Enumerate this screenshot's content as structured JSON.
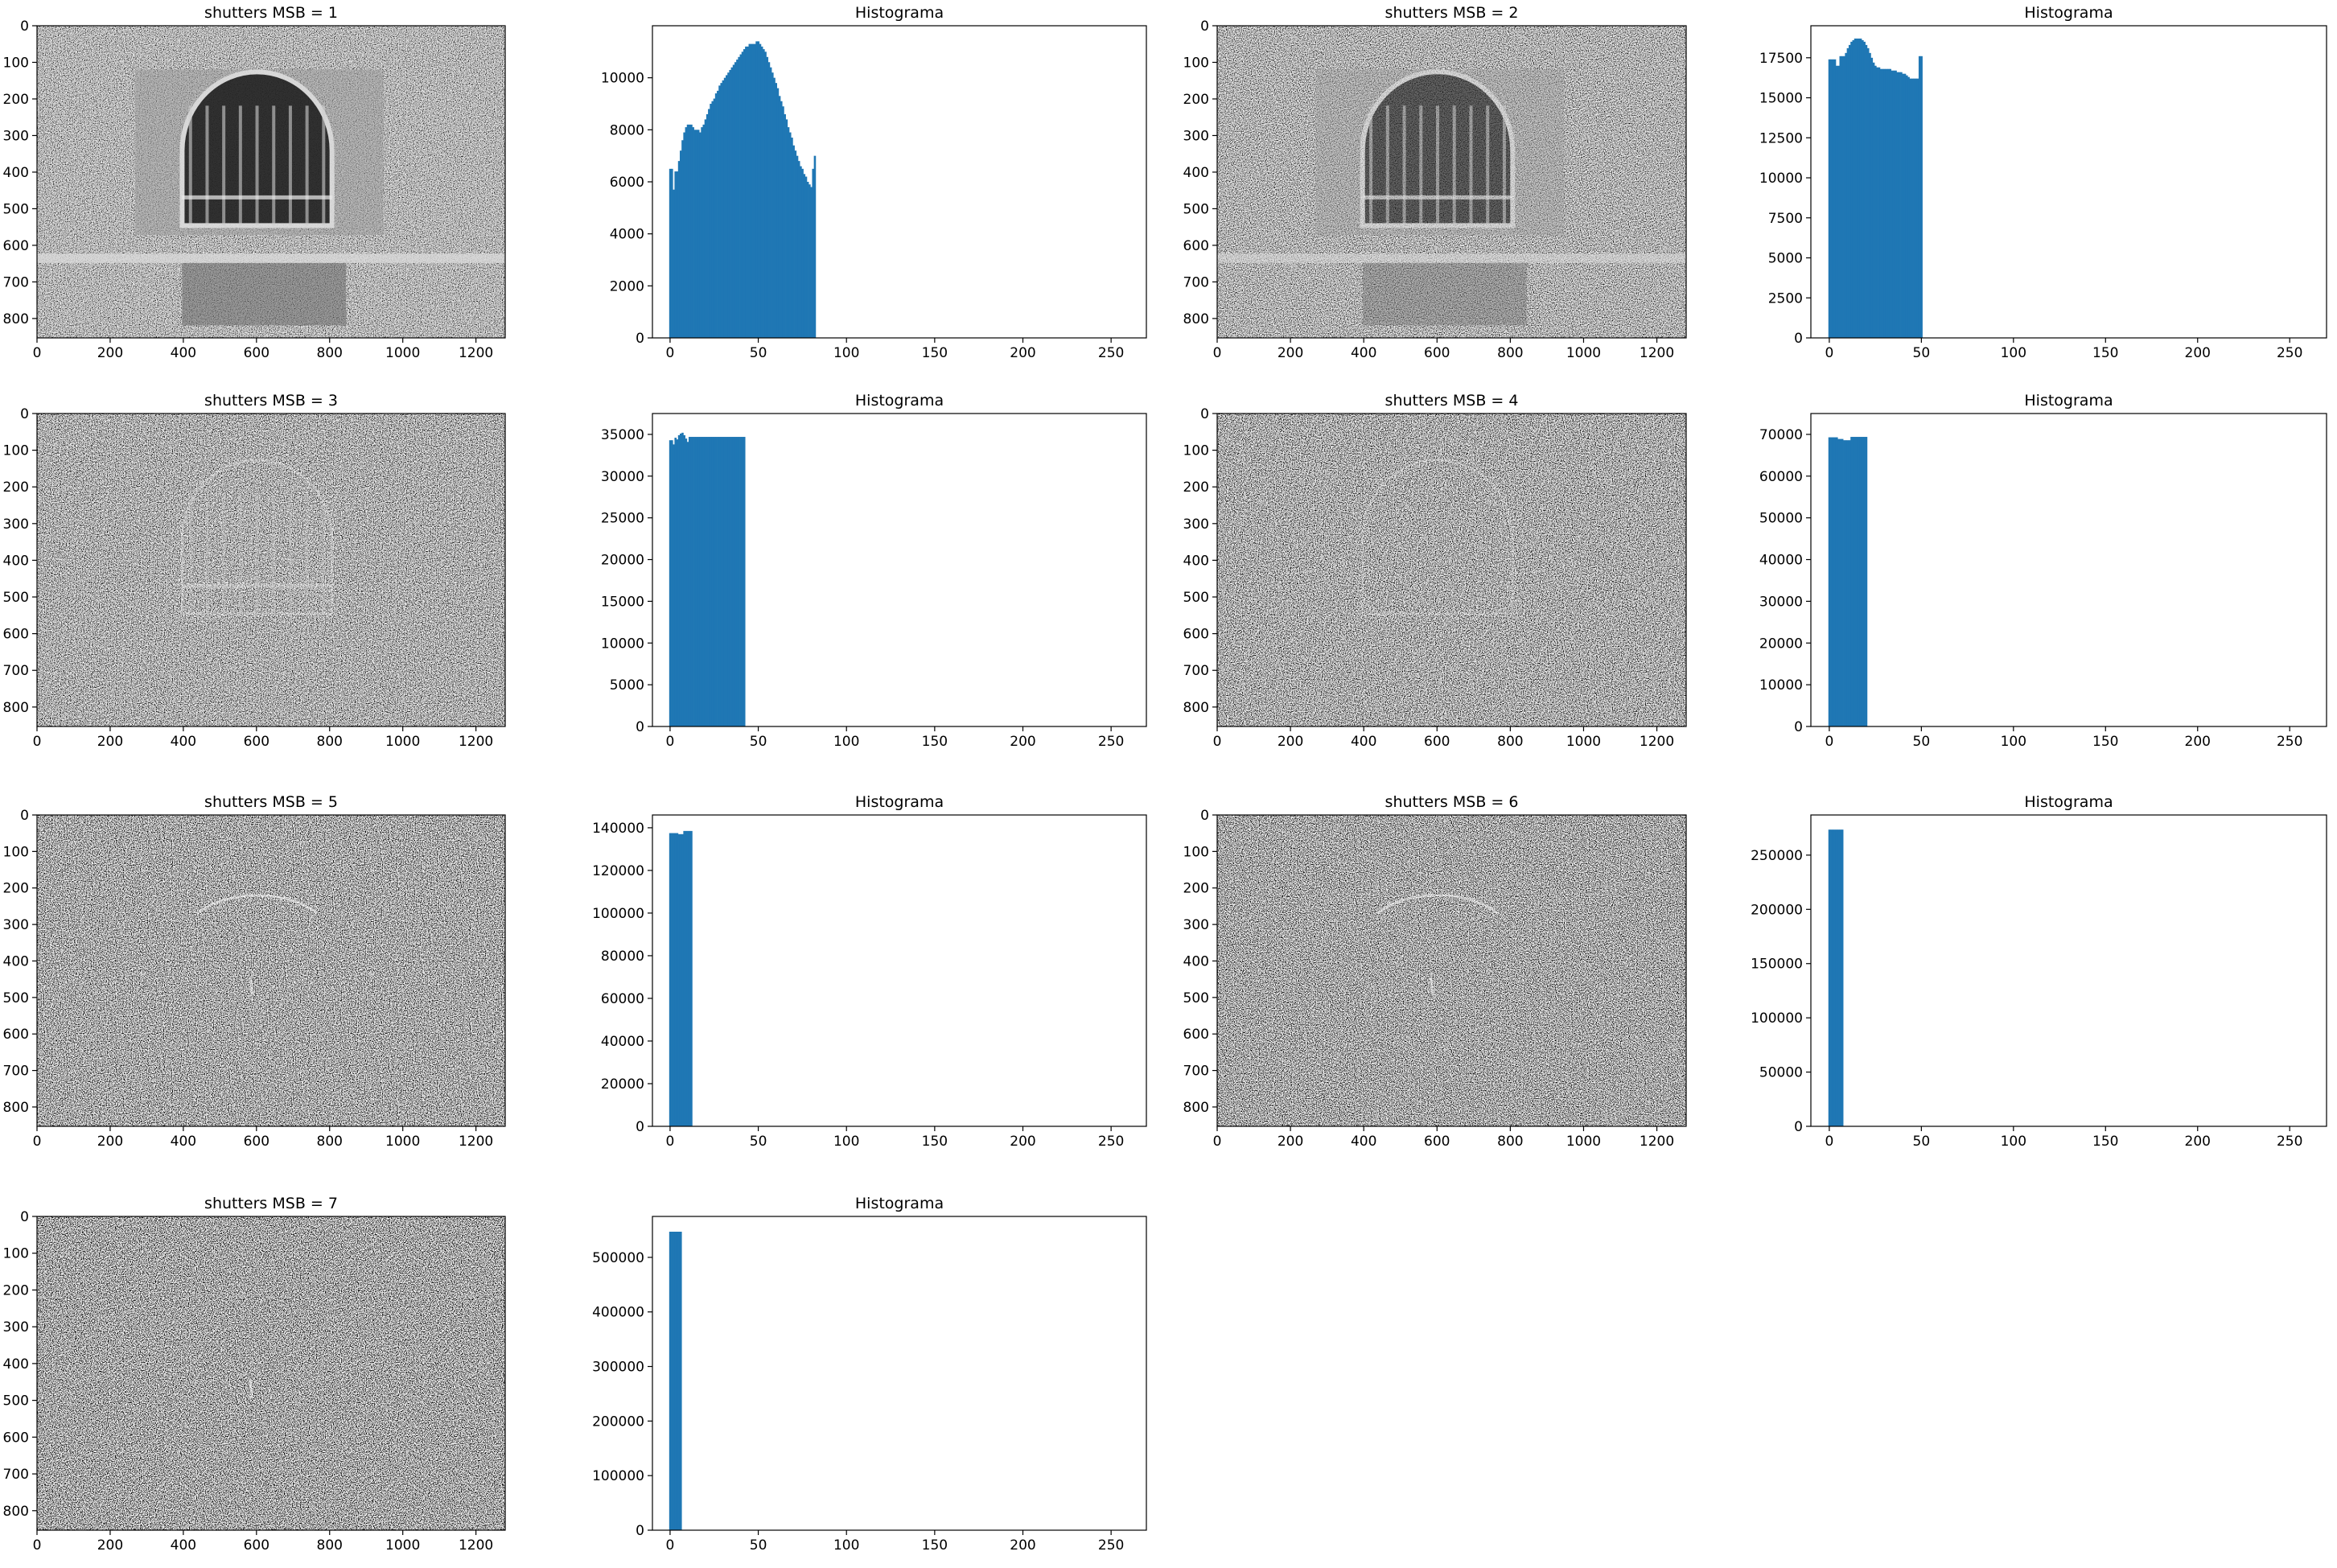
{
  "chart_data": [
    {
      "type": "image",
      "title": "shutters MSB = 1",
      "msb": 1,
      "content": "grayscale photo of arched window with railings; top row 0-620 detailed, bottom wall with bench",
      "xticks": [
        0,
        200,
        400,
        600,
        800,
        1000,
        1200
      ],
      "yticks": [
        0,
        100,
        200,
        300,
        400,
        500,
        600,
        700,
        800
      ],
      "xlim": [
        0,
        1280
      ],
      "ylim": [
        0,
        853
      ]
    },
    {
      "type": "histogram",
      "title": "Histograma",
      "xlim": [
        -10,
        270
      ],
      "ylim": [
        0,
        12000
      ],
      "xticks": [
        0,
        50,
        100,
        150,
        200,
        250
      ],
      "yticks": [
        0,
        2000,
        4000,
        6000,
        8000,
        10000
      ],
      "bin_start": 0,
      "bin_width": 1,
      "values": [
        6500,
        6500,
        5700,
        6400,
        6400,
        6800,
        7200,
        7600,
        7900,
        8100,
        8200,
        8200,
        8200,
        8100,
        8000,
        8000,
        8000,
        7900,
        8100,
        8200,
        8400,
        8600,
        8800,
        9000,
        9100,
        9200,
        9400,
        9500,
        9700,
        9800,
        9900,
        10000,
        10100,
        10200,
        10300,
        10400,
        10500,
        10600,
        10700,
        10800,
        10900,
        11000,
        11100,
        11200,
        11200,
        11300,
        11300,
        11300,
        11300,
        11400,
        11400,
        11300,
        11200,
        11100,
        11000,
        10800,
        10600,
        10400,
        10200,
        10000,
        9800,
        9600,
        9300,
        9100,
        8900,
        8600,
        8400,
        8100,
        7900,
        7700,
        7400,
        7200,
        7000,
        6800,
        6600,
        6500,
        6300,
        6200,
        6000,
        5900,
        5800,
        6500,
        7000
      ]
    },
    {
      "type": "image",
      "title": "shutters MSB = 2",
      "msb": 2,
      "content": "noisier grayscale arched window",
      "xticks": [
        0,
        200,
        400,
        600,
        800,
        1000,
        1200
      ],
      "yticks": [
        0,
        100,
        200,
        300,
        400,
        500,
        600,
        700,
        800
      ],
      "xlim": [
        0,
        1280
      ],
      "ylim": [
        0,
        853
      ]
    },
    {
      "type": "histogram",
      "title": "Histograma",
      "xlim": [
        -10,
        270
      ],
      "ylim": [
        0,
        19500
      ],
      "xticks": [
        0,
        50,
        100,
        150,
        200,
        250
      ],
      "yticks": [
        0,
        2500,
        5000,
        7500,
        10000,
        12500,
        15000,
        17500
      ],
      "bin_start": 0,
      "bin_width": 1,
      "values": [
        17400,
        17400,
        17400,
        17400,
        17000,
        17000,
        17600,
        17600,
        17600,
        17800,
        18100,
        18300,
        18500,
        18600,
        18700,
        18700,
        18700,
        18700,
        18600,
        18500,
        18300,
        18100,
        17800,
        17500,
        17200,
        17000,
        16900,
        16900,
        16800,
        16800,
        16800,
        16800,
        16800,
        16800,
        16700,
        16700,
        16700,
        16600,
        16600,
        16600,
        16500,
        16500,
        16400,
        16300,
        16200,
        16200,
        16200,
        16200,
        16200,
        17600,
        17600
      ]
    },
    {
      "type": "image",
      "title": "shutters MSB = 3",
      "msb": 3,
      "content": "mostly noise, faint arch outline",
      "xticks": [
        0,
        200,
        400,
        600,
        800,
        1000,
        1200
      ],
      "yticks": [
        0,
        100,
        200,
        300,
        400,
        500,
        600,
        700,
        800
      ],
      "xlim": [
        0,
        1280
      ],
      "ylim": [
        0,
        853
      ]
    },
    {
      "type": "histogram",
      "title": "Histograma",
      "xlim": [
        -10,
        270
      ],
      "ylim": [
        0,
        37500
      ],
      "xticks": [
        0,
        50,
        100,
        150,
        200,
        250
      ],
      "yticks": [
        0,
        5000,
        10000,
        15000,
        20000,
        25000,
        30000,
        35000
      ],
      "bin_start": 0,
      "bin_width": 1,
      "values": [
        34300,
        34300,
        33800,
        34600,
        34400,
        34900,
        35100,
        35200,
        34900,
        34500,
        34100,
        34700,
        34700,
        34700,
        34700,
        34700,
        34700,
        34700,
        34700,
        34700,
        34700,
        34700,
        34700,
        34700,
        34700,
        34700,
        34700,
        34700,
        34700,
        34700,
        34700,
        34700,
        34700,
        34700,
        34700,
        34700,
        34700,
        34700,
        34700,
        34700,
        34700,
        34700,
        34700
      ]
    },
    {
      "type": "image",
      "title": "shutters MSB = 4",
      "msb": 4,
      "content": "noise with bright arch edge and lower railing fragments",
      "xticks": [
        0,
        200,
        400,
        600,
        800,
        1000,
        1200
      ],
      "yticks": [
        0,
        100,
        200,
        300,
        400,
        500,
        600,
        700,
        800
      ],
      "xlim": [
        0,
        1280
      ],
      "ylim": [
        0,
        853
      ]
    },
    {
      "type": "histogram",
      "title": "Histograma",
      "xlim": [
        -10,
        270
      ],
      "ylim": [
        0,
        75000
      ],
      "xticks": [
        0,
        50,
        100,
        150,
        200,
        250
      ],
      "yticks": [
        0,
        10000,
        20000,
        30000,
        40000,
        50000,
        60000,
        70000
      ],
      "bin_start": 0,
      "bin_width": 1,
      "values": [
        69300,
        69300,
        69300,
        69300,
        69300,
        68900,
        68900,
        68900,
        68600,
        68600,
        68600,
        68600,
        69400,
        69400,
        69400,
        69400,
        69400,
        69400,
        69400,
        69400,
        69400
      ]
    },
    {
      "type": "image",
      "title": "shutters MSB = 5",
      "msb": 5,
      "content": "noise with faint arch fragments",
      "xticks": [
        0,
        200,
        400,
        600,
        800,
        1000,
        1200
      ],
      "yticks": [
        0,
        100,
        200,
        300,
        400,
        500,
        600,
        700,
        800
      ],
      "xlim": [
        0,
        1280
      ],
      "ylim": [
        0,
        853
      ]
    },
    {
      "type": "histogram",
      "title": "Histograma",
      "xlim": [
        -10,
        270
      ],
      "ylim": [
        0,
        146000
      ],
      "xticks": [
        0,
        50,
        100,
        150,
        200,
        250
      ],
      "yticks": [
        0,
        20000,
        40000,
        60000,
        80000,
        100000,
        120000,
        140000
      ],
      "bin_start": 0,
      "bin_width": 1,
      "values": [
        137500,
        137500,
        137500,
        137500,
        137500,
        137000,
        137000,
        137000,
        138500,
        138500,
        138500,
        138500,
        138500
      ]
    },
    {
      "type": "image",
      "title": "shutters MSB = 6",
      "msb": 6,
      "content": "noise",
      "xticks": [
        0,
        200,
        400,
        600,
        800,
        1000,
        1200
      ],
      "yticks": [
        0,
        100,
        200,
        300,
        400,
        500,
        600,
        700,
        800
      ],
      "xlim": [
        0,
        1280
      ],
      "ylim": [
        0,
        853
      ]
    },
    {
      "type": "histogram",
      "title": "Histograma",
      "xlim": [
        -10,
        270
      ],
      "ylim": [
        0,
        287000
      ],
      "xticks": [
        0,
        50,
        100,
        150,
        200,
        250
      ],
      "yticks": [
        0,
        50000,
        100000,
        150000,
        200000,
        250000
      ],
      "bin_start": 0,
      "bin_width": 1,
      "values": [
        273500,
        273500,
        273500,
        273500,
        273500,
        273500,
        273500,
        273500
      ]
    },
    {
      "type": "image",
      "title": "shutters MSB = 7",
      "msb": 7,
      "content": "noise",
      "xticks": [
        0,
        200,
        400,
        600,
        800,
        1000,
        1200
      ],
      "yticks": [
        0,
        100,
        200,
        300,
        400,
        500,
        600,
        700,
        800
      ],
      "xlim": [
        0,
        1280
      ],
      "ylim": [
        0,
        853
      ]
    },
    {
      "type": "histogram",
      "title": "Histograma",
      "xlim": [
        -10,
        270
      ],
      "ylim": [
        0,
        575000
      ],
      "xticks": [
        0,
        50,
        100,
        150,
        200,
        250
      ],
      "yticks": [
        0,
        100000,
        200000,
        300000,
        400000,
        500000
      ],
      "bin_start": 0,
      "bin_width": 1,
      "values": [
        547000,
        547000,
        547000,
        547000,
        547000,
        547000,
        547000
      ]
    }
  ],
  "colors": {
    "bar": "#1f77b4",
    "axis": "#000000",
    "background": "#ffffff"
  }
}
